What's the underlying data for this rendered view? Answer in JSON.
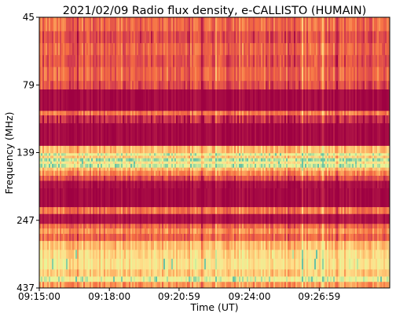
{
  "chart_data": {
    "type": "heatmap",
    "title": "2021/02/09  Radio flux density, e-CALLISTO (HUMAIN)",
    "xlabel": "Time (UT)",
    "ylabel": "Frequency (MHz)",
    "x_ticks": [
      "09:15:00",
      "09:18:00",
      "09:20:59",
      "09:24:00",
      "09:26:59"
    ],
    "x_tick_seconds": [
      0,
      180,
      359,
      540,
      719
    ],
    "x_range_seconds": [
      0,
      900
    ],
    "y_ticks": [
      "45",
      "79",
      "139",
      "247",
      "437"
    ],
    "y_tick_values": [
      45,
      79,
      139,
      247,
      437
    ],
    "y_range": [
      45,
      437
    ],
    "y_inverted": true,
    "colormap": "Spectral_r",
    "colors": {
      "low": "#9e0142",
      "mid_low": "#d53e4f",
      "mid": "#f46d43",
      "mid_high": "#fdae61",
      "high": "#fee08b",
      "peak": "#e6f598",
      "extreme": "#66c2a5"
    },
    "frequency_bands": [
      {
        "from": 45,
        "to": 52,
        "level": 0.32
      },
      {
        "from": 52,
        "to": 58,
        "level": 0.22
      },
      {
        "from": 58,
        "to": 64,
        "level": 0.3
      },
      {
        "from": 64,
        "to": 70,
        "level": 0.24
      },
      {
        "from": 70,
        "to": 77,
        "level": 0.3
      },
      {
        "from": 77,
        "to": 83,
        "level": 0.22
      },
      {
        "from": 83,
        "to": 102,
        "level": 0.02
      },
      {
        "from": 102,
        "to": 106,
        "level": 0.35
      },
      {
        "from": 106,
        "to": 113,
        "level": 0.12
      },
      {
        "from": 113,
        "to": 133,
        "level": 0.02
      },
      {
        "from": 133,
        "to": 140,
        "level": 0.55
      },
      {
        "from": 140,
        "to": 144,
        "level": 0.82
      },
      {
        "from": 144,
        "to": 148,
        "level": 0.6
      },
      {
        "from": 148,
        "to": 153,
        "level": 0.9
      },
      {
        "from": 153,
        "to": 157,
        "level": 0.7
      },
      {
        "from": 157,
        "to": 163,
        "level": 0.86
      },
      {
        "from": 163,
        "to": 168,
        "level": 0.55
      },
      {
        "from": 168,
        "to": 176,
        "level": 0.4
      },
      {
        "from": 176,
        "to": 184,
        "level": 0.22
      },
      {
        "from": 184,
        "to": 196,
        "level": 0.04
      },
      {
        "from": 196,
        "to": 226,
        "level": 0.02
      },
      {
        "from": 226,
        "to": 237,
        "level": 0.35
      },
      {
        "from": 237,
        "to": 257,
        "level": 0.05
      },
      {
        "from": 257,
        "to": 270,
        "level": 0.3
      },
      {
        "from": 270,
        "to": 285,
        "level": 0.42
      },
      {
        "from": 285,
        "to": 305,
        "level": 0.3
      },
      {
        "from": 305,
        "to": 330,
        "level": 0.55
      },
      {
        "from": 330,
        "to": 355,
        "level": 0.65
      },
      {
        "from": 355,
        "to": 385,
        "level": 0.7
      },
      {
        "from": 385,
        "to": 405,
        "level": 0.6
      },
      {
        "from": 405,
        "to": 420,
        "level": 0.8
      },
      {
        "from": 420,
        "to": 437,
        "level": 0.45
      }
    ]
  }
}
